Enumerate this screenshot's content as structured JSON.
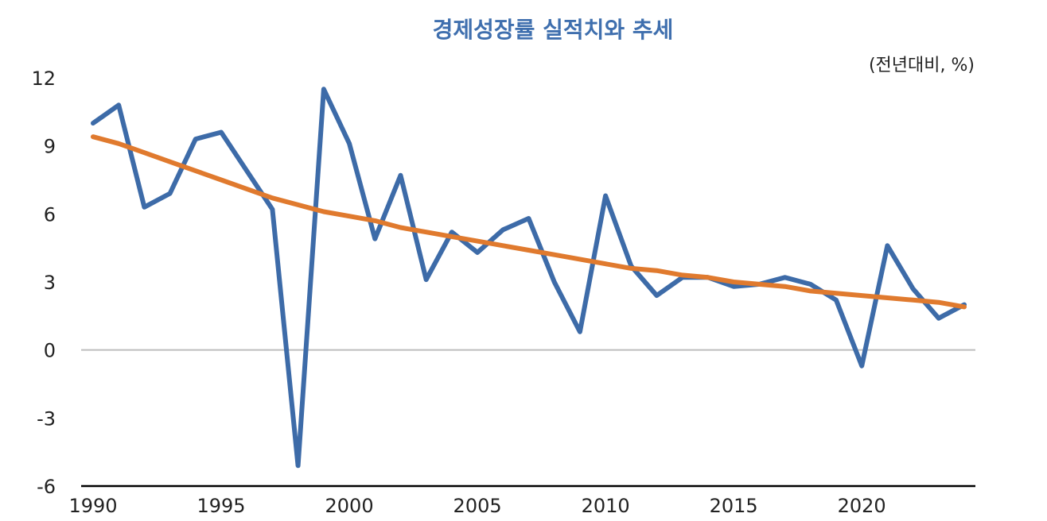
{
  "chart_data": {
    "type": "line",
    "title": "경제성장률 실적치와 추세",
    "unit_label": "(전년대비, %)",
    "x": [
      1990,
      1991,
      1992,
      1993,
      1994,
      1995,
      1996,
      1997,
      1998,
      1999,
      2000,
      2001,
      2002,
      2003,
      2004,
      2005,
      2006,
      2007,
      2008,
      2009,
      2010,
      2011,
      2012,
      2013,
      2014,
      2015,
      2016,
      2017,
      2018,
      2019,
      2020,
      2021,
      2022,
      2023,
      2024
    ],
    "x_ticks": [
      1990,
      1995,
      2000,
      2005,
      2010,
      2015,
      2020
    ],
    "y_ticks": [
      12,
      9,
      6,
      3,
      0,
      -3,
      -6
    ],
    "ylim": [
      -6,
      12
    ],
    "series": [
      {
        "values": [
          10.0,
          10.8,
          6.3,
          6.9,
          9.3,
          9.6,
          7.9,
          6.2,
          -5.1,
          11.5,
          9.1,
          4.9,
          7.7,
          3.1,
          5.2,
          4.3,
          5.3,
          5.8,
          3.0,
          0.8,
          6.8,
          3.7,
          2.4,
          3.2,
          3.2,
          2.8,
          2.9,
          3.2,
          2.9,
          2.2,
          -0.7,
          4.6,
          2.7,
          1.4,
          2.0
        ],
        "color": "#3d6ba8"
      },
      {
        "values": [
          9.4,
          9.1,
          8.7,
          8.3,
          7.9,
          7.5,
          7.1,
          6.7,
          6.4,
          6.1,
          5.9,
          5.7,
          5.4,
          5.2,
          5.0,
          4.8,
          4.6,
          4.4,
          4.2,
          4.0,
          3.8,
          3.6,
          3.5,
          3.3,
          3.2,
          3.0,
          2.9,
          2.8,
          2.6,
          2.5,
          2.4,
          2.3,
          2.2,
          2.1,
          1.9
        ],
        "color": "#e07a2e"
      }
    ],
    "title_color": "#3f6fae",
    "zero_line_color": "#bdbdbd",
    "axis_color": "#000000",
    "grid": false
  }
}
